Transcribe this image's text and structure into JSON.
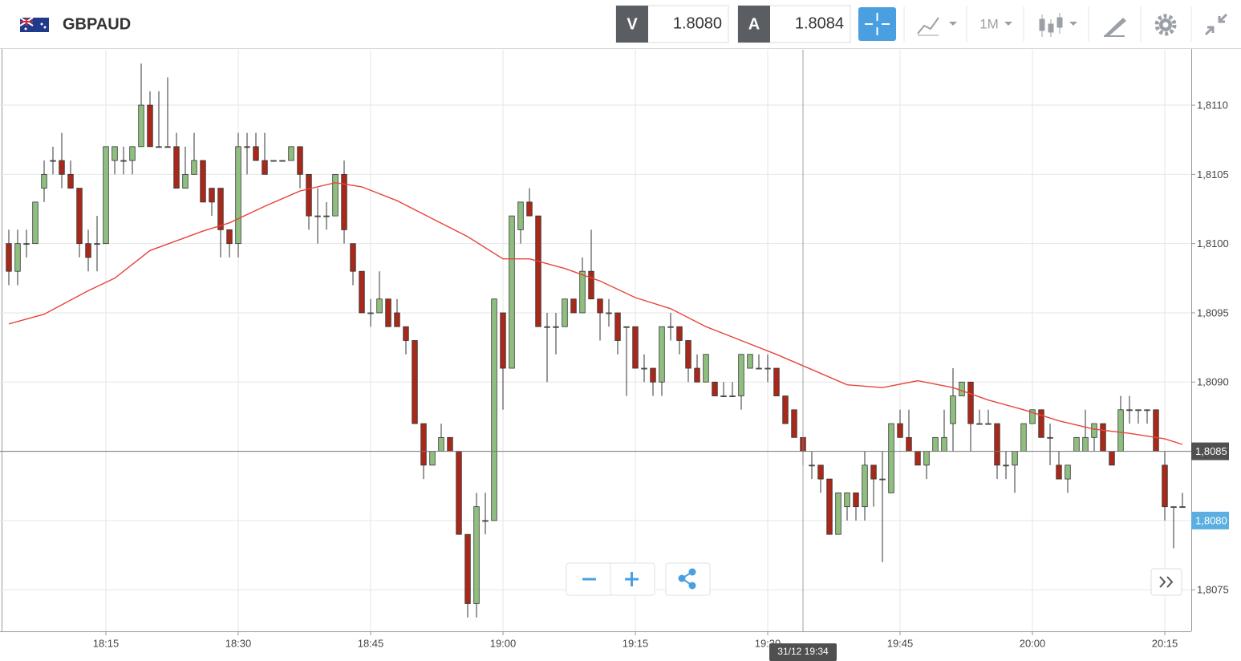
{
  "header": {
    "symbol": "GBPAUD",
    "bid_label": "V",
    "bid": "1.8080",
    "ask_label": "A",
    "ask": "1.8084",
    "interval": "1M"
  },
  "chart_data": {
    "type": "candlestick",
    "x": [
      "18:04",
      "18:05",
      "18:06",
      "18:07",
      "18:08",
      "18:09",
      "18:10",
      "18:11",
      "18:12",
      "18:13",
      "18:14",
      "18:15",
      "18:16",
      "18:17",
      "18:18",
      "18:19",
      "18:20",
      "18:21",
      "18:22",
      "18:23",
      "18:24",
      "18:25",
      "18:26",
      "18:27",
      "18:28",
      "18:29",
      "18:30",
      "18:31",
      "18:32",
      "18:33",
      "18:34",
      "18:35",
      "18:36",
      "18:37",
      "18:38",
      "18:39",
      "18:40",
      "18:41",
      "18:42",
      "18:43",
      "18:44",
      "18:45",
      "18:46",
      "18:47",
      "18:48",
      "18:49",
      "18:50",
      "18:51",
      "18:52",
      "18:53",
      "18:54",
      "18:55",
      "18:56",
      "18:57",
      "18:58",
      "18:59",
      "19:00",
      "19:01",
      "19:02",
      "19:03",
      "19:04",
      "19:05",
      "19:06",
      "19:07",
      "19:08",
      "19:09",
      "19:10",
      "19:11",
      "19:12",
      "19:13",
      "19:14",
      "19:15",
      "19:16",
      "19:17",
      "19:18",
      "19:19",
      "19:20",
      "19:21",
      "19:22",
      "19:23",
      "19:24",
      "19:25",
      "19:26",
      "19:27",
      "19:28",
      "19:29",
      "19:30",
      "19:31",
      "19:32",
      "19:33",
      "19:34",
      "19:35",
      "19:36",
      "19:37",
      "19:38",
      "19:39",
      "19:40",
      "19:41",
      "19:42",
      "19:43",
      "19:44",
      "19:45",
      "19:46",
      "19:47",
      "19:48",
      "19:49",
      "19:50",
      "19:51",
      "19:52",
      "19:53",
      "19:54",
      "19:55",
      "19:56",
      "19:57",
      "19:58",
      "19:59",
      "20:00",
      "20:01",
      "20:02",
      "20:03",
      "20:04",
      "20:05",
      "20:06",
      "20:07",
      "20:08",
      "20:09",
      "20:10",
      "20:11",
      "20:12",
      "20:13",
      "20:14",
      "20:15",
      "20:16",
      "20:17"
    ],
    "open": [
      1.81,
      1.8098,
      1.81,
      1.81,
      1.8104,
      1.8106,
      1.8106,
      1.8105,
      1.8104,
      1.81,
      1.81,
      1.81,
      1.8106,
      1.8106,
      1.8106,
      1.8107,
      1.811,
      1.8107,
      1.8107,
      1.8107,
      1.8104,
      1.8105,
      1.8106,
      1.8104,
      1.8104,
      1.8101,
      1.81,
      1.8107,
      1.8107,
      1.8106,
      1.8106,
      1.8106,
      1.8106,
      1.8107,
      1.8105,
      1.8102,
      1.8102,
      1.8102,
      1.8105,
      1.81,
      1.8098,
      1.8095,
      1.8095,
      1.8096,
      1.8095,
      1.8094,
      1.8093,
      1.8087,
      1.8084,
      1.8085,
      1.8086,
      1.8085,
      1.8079,
      1.8074,
      1.808,
      1.808,
      1.8095,
      1.8091,
      1.8101,
      1.8103,
      1.8102,
      1.8094,
      1.8094,
      1.8094,
      1.8096,
      1.8095,
      1.8098,
      1.8096,
      1.8095,
      1.8095,
      1.8094,
      1.8094,
      1.8091,
      1.8091,
      1.809,
      1.8094,
      1.8094,
      1.8093,
      1.8091,
      1.809,
      1.809,
      1.8089,
      1.8089,
      1.8089,
      1.8091,
      1.8091,
      1.8091,
      1.8091,
      1.8089,
      1.8088,
      1.8086,
      1.8084,
      1.8084,
      1.8083,
      1.8079,
      1.8081,
      1.8082,
      1.8081,
      1.8084,
      1.8083,
      1.8082,
      1.8087,
      1.8086,
      1.8085,
      1.8084,
      1.8085,
      1.8085,
      1.8087,
      1.8089,
      1.809,
      1.8087,
      1.8087,
      1.8087,
      1.8084,
      1.8084,
      1.8085,
      1.8087,
      1.8088,
      1.8086,
      1.8084,
      1.8083,
      1.8085,
      1.8085,
      1.8086,
      1.8087,
      1.8085,
      1.8085,
      1.8088,
      1.8088,
      1.8088,
      1.8088,
      1.8084,
      1.8081,
      1.8081
    ],
    "high": [
      1.8101,
      1.8101,
      1.8101,
      1.8103,
      1.8106,
      1.8107,
      1.8108,
      1.8106,
      1.8104,
      1.8101,
      1.8102,
      1.8107,
      1.8107,
      1.8107,
      1.8107,
      1.8113,
      1.8111,
      1.8111,
      1.8112,
      1.8108,
      1.8107,
      1.8108,
      1.8106,
      1.8104,
      1.8104,
      1.8101,
      1.8108,
      1.8108,
      1.8108,
      1.8108,
      1.8106,
      1.8106,
      1.8107,
      1.8107,
      1.8105,
      1.8104,
      1.8103,
      1.8105,
      1.8106,
      1.81,
      1.8098,
      1.8096,
      1.8098,
      1.8096,
      1.8096,
      1.8094,
      1.8093,
      1.8087,
      1.8085,
      1.8087,
      1.8086,
      1.8085,
      1.8079,
      1.8082,
      1.8082,
      1.8096,
      1.8095,
      1.8102,
      1.8103,
      1.8104,
      1.8102,
      1.8095,
      1.8095,
      1.8096,
      1.8096,
      1.8099,
      1.8101,
      1.8096,
      1.8096,
      1.8095,
      1.8094,
      1.8094,
      1.8092,
      1.8091,
      1.8094,
      1.8095,
      1.8094,
      1.8093,
      1.8092,
      1.8092,
      1.809,
      1.809,
      1.809,
      1.8092,
      1.8092,
      1.8092,
      1.8092,
      1.8091,
      1.8089,
      1.8088,
      1.8086,
      1.8085,
      1.8084,
      1.8083,
      1.8082,
      1.8082,
      1.8082,
      1.8085,
      1.8084,
      1.8085,
      1.8087,
      1.8088,
      1.8088,
      1.8085,
      1.8085,
      1.8086,
      1.8088,
      1.8091,
      1.809,
      1.809,
      1.8088,
      1.8088,
      1.8087,
      1.8085,
      1.8085,
      1.8087,
      1.8088,
      1.8088,
      1.8087,
      1.8085,
      1.8084,
      1.8086,
      1.8088,
      1.8087,
      1.8087,
      1.8085,
      1.8089,
      1.8089,
      1.8088,
      1.8088,
      1.8088,
      1.8085,
      1.8081,
      1.8082
    ],
    "low": [
      1.8097,
      1.8097,
      1.8099,
      1.81,
      1.8103,
      1.8105,
      1.8104,
      1.8104,
      1.8099,
      1.8098,
      1.8098,
      1.81,
      1.8105,
      1.8105,
      1.8105,
      1.8107,
      1.8107,
      1.8107,
      1.8107,
      1.8104,
      1.8104,
      1.8105,
      1.8103,
      1.8102,
      1.8099,
      1.8099,
      1.8099,
      1.8105,
      1.8106,
      1.8105,
      1.8106,
      1.8106,
      1.8106,
      1.8104,
      1.8101,
      1.81,
      1.8101,
      1.8102,
      1.81,
      1.8097,
      1.8095,
      1.8094,
      1.8095,
      1.8094,
      1.8094,
      1.8092,
      1.8087,
      1.8083,
      1.8084,
      1.8085,
      1.8085,
      1.8079,
      1.8073,
      1.8073,
      1.8079,
      1.808,
      1.8088,
      1.8091,
      1.81,
      1.8102,
      1.8094,
      1.809,
      1.8092,
      1.8094,
      1.8095,
      1.8095,
      1.8096,
      1.8093,
      1.8094,
      1.8092,
      1.8089,
      1.8091,
      1.809,
      1.8089,
      1.8089,
      1.8093,
      1.8092,
      1.809,
      1.809,
      1.809,
      1.8089,
      1.8089,
      1.8089,
      1.8088,
      1.8091,
      1.8091,
      1.809,
      1.8089,
      1.8087,
      1.8086,
      1.8084,
      1.8083,
      1.8082,
      1.8079,
      1.8079,
      1.808,
      1.808,
      1.808,
      1.8081,
      1.8077,
      1.8082,
      1.8086,
      1.8085,
      1.8084,
      1.8083,
      1.8085,
      1.8085,
      1.8085,
      1.8089,
      1.8085,
      1.8087,
      1.8087,
      1.8083,
      1.8083,
      1.8082,
      1.8085,
      1.8087,
      1.8086,
      1.8084,
      1.8083,
      1.8082,
      1.8085,
      1.8085,
      1.8085,
      1.8085,
      1.8084,
      1.8085,
      1.8087,
      1.8087,
      1.8087,
      1.8085,
      1.808,
      1.8078,
      1.8081
    ],
    "close": [
      1.8098,
      1.81,
      1.81,
      1.8103,
      1.8105,
      1.8106,
      1.8105,
      1.8104,
      1.81,
      1.8099,
      1.81,
      1.8107,
      1.8107,
      1.8106,
      1.8107,
      1.811,
      1.8107,
      1.8107,
      1.8107,
      1.8104,
      1.8105,
      1.8106,
      1.8103,
      1.8103,
      1.8101,
      1.81,
      1.8107,
      1.8107,
      1.8106,
      1.8105,
      1.8106,
      1.8106,
      1.8107,
      1.8105,
      1.8102,
      1.8102,
      1.8102,
      1.8105,
      1.8101,
      1.8098,
      1.8095,
      1.8095,
      1.8096,
      1.8094,
      1.8094,
      1.8093,
      1.8087,
      1.8084,
      1.8085,
      1.8086,
      1.8085,
      1.8079,
      1.8074,
      1.8081,
      1.808,
      1.8096,
      1.8091,
      1.8102,
      1.8103,
      1.8102,
      1.8094,
      1.8094,
      1.8094,
      1.8096,
      1.8095,
      1.8098,
      1.8096,
      1.8095,
      1.8095,
      1.8093,
      1.8094,
      1.8091,
      1.8091,
      1.809,
      1.8094,
      1.8094,
      1.8093,
      1.8091,
      1.809,
      1.8092,
      1.8089,
      1.8089,
      1.8089,
      1.8092,
      1.8092,
      1.8091,
      1.8091,
      1.8089,
      1.8087,
      1.8086,
      1.8085,
      1.8084,
      1.8083,
      1.8079,
      1.8082,
      1.8082,
      1.8081,
      1.8084,
      1.8083,
      1.8083,
      1.8087,
      1.8086,
      1.8085,
      1.8084,
      1.8085,
      1.8086,
      1.8086,
      1.8089,
      1.809,
      1.8087,
      1.8087,
      1.8087,
      1.8084,
      1.8084,
      1.8085,
      1.8087,
      1.8088,
      1.8086,
      1.8086,
      1.8083,
      1.8084,
      1.8086,
      1.8086,
      1.8087,
      1.8085,
      1.8084,
      1.8088,
      1.8088,
      1.8088,
      1.8088,
      1.8085,
      1.8081,
      1.8081,
      1.8081
    ],
    "up_color": "#8fbf7f",
    "down_color": "#a8281a",
    "ma": {
      "x": [
        "18:04",
        "18:08",
        "18:13",
        "18:16",
        "18:20",
        "18:23",
        "18:26",
        "18:29",
        "18:33",
        "18:37",
        "18:41",
        "18:44",
        "18:48",
        "18:52",
        "18:56",
        "19:00",
        "19:03",
        "19:07",
        "19:11",
        "19:15",
        "19:19",
        "19:23",
        "19:27",
        "19:31",
        "19:35",
        "19:39",
        "19:43",
        "19:47",
        "19:51",
        "19:55",
        "19:59",
        "20:03",
        "20:07",
        "20:11",
        "20:15",
        "20:17"
      ],
      "values": [
        1.80942,
        1.80949,
        1.80966,
        1.80975,
        1.80995,
        1.81002,
        1.81009,
        1.81015,
        1.81027,
        1.81038,
        1.81044,
        1.81041,
        1.81031,
        1.81018,
        1.81005,
        1.80989,
        1.80989,
        1.80982,
        1.80973,
        1.80961,
        1.80953,
        1.8094,
        1.8093,
        1.8092,
        1.80909,
        1.80898,
        1.80896,
        1.80901,
        1.80896,
        1.80887,
        1.8088,
        1.80872,
        1.80866,
        1.80863,
        1.80859,
        1.80855
      ],
      "color": "#e8443a"
    },
    "xlim": [
      "18:03",
      "20:18"
    ],
    "xticks": [
      "18:15",
      "18:30",
      "18:45",
      "19:00",
      "19:15",
      "19:30",
      "19:45",
      "20:00",
      "20:15"
    ],
    "ylim": [
      1.8072,
      1.8114
    ],
    "yticks": [
      {
        "value": 1.8075,
        "label": "1,8075"
      },
      {
        "value": 1.808,
        "label": "1,8080"
      },
      {
        "value": 1.8085,
        "label": "1,8085"
      },
      {
        "value": 1.809,
        "label": "1,8090"
      },
      {
        "value": 1.8095,
        "label": "1,8095"
      },
      {
        "value": 1.81,
        "label": "1,8100"
      },
      {
        "value": 1.8105,
        "label": "1,8105"
      },
      {
        "value": 1.811,
        "label": "1,8110"
      }
    ],
    "grid": true,
    "price_markers": [
      {
        "value": 1.8085,
        "label": "1,8085",
        "color": "#505050"
      },
      {
        "value": 1.808,
        "label": "1,8080",
        "color": "#5aafe0"
      }
    ],
    "crosshair": {
      "x": "19:34",
      "label": "31/12 19:34"
    }
  }
}
